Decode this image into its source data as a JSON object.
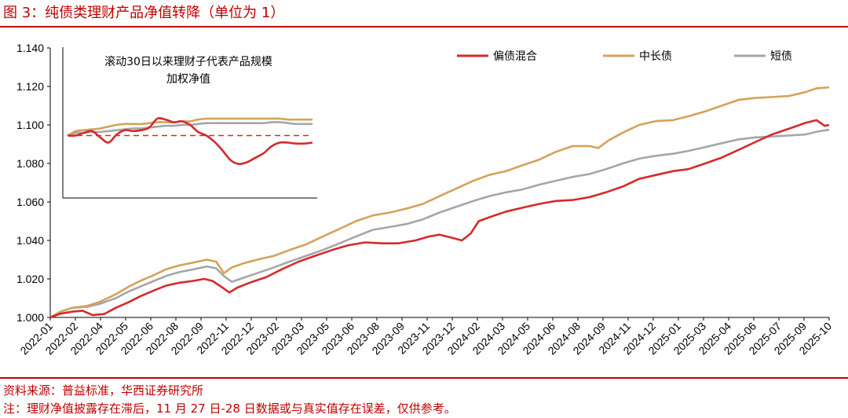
{
  "figure": {
    "title": "图 3：纯债类理财产品净值转降（单位为 1）",
    "source": "资料来源：普益标准，华西证券研究所",
    "note": "注：理财净值披露存在滞后，11 月 27 日-28 日数据或与真实值存在误差，仅供参考。"
  },
  "chart_data": [
    {
      "type": "line",
      "title": "",
      "xlabel": "",
      "ylabel": "",
      "ylim": [
        1.0,
        1.14
      ],
      "y_ticks": [
        "1.000",
        "1.020",
        "1.040",
        "1.060",
        "1.080",
        "1.100",
        "1.120",
        "1.140"
      ],
      "x_labels": [
        "2022-01",
        "2022-02",
        "2022-04",
        "2022-05",
        "2022-06",
        "2022-08",
        "2022-09",
        "2022-11",
        "2022-12",
        "2023-02",
        "2023-03",
        "2023-05",
        "2023-06",
        "2023-08",
        "2023-09",
        "2023-11",
        "2023-12",
        "2024-02",
        "2024-03",
        "2024-05",
        "2024-06",
        "2024-08",
        "2024-09",
        "2024-11",
        "2024-12",
        "2025-01",
        "2025-03",
        "2025-04",
        "2025-06",
        "2025-07",
        "2025-09",
        "2025-10"
      ],
      "legend_position": "top-right",
      "grid": false,
      "series": [
        {
          "name": "偏债混合",
          "color": "#d42a2a",
          "points": [
            [
              "2022-01-01",
              1.0
            ],
            [
              "2022-01-20",
              1.002
            ],
            [
              "2022-02-10",
              1.003
            ],
            [
              "2022-03-01",
              1.0035
            ],
            [
              "2022-03-20",
              1.0012
            ],
            [
              "2022-04-10",
              1.0018
            ],
            [
              "2022-05-01",
              1.005
            ],
            [
              "2022-05-25",
              1.008
            ],
            [
              "2022-06-15",
              1.011
            ],
            [
              "2022-07-10",
              1.014
            ],
            [
              "2022-08-01",
              1.0165
            ],
            [
              "2022-08-25",
              1.018
            ],
            [
              "2022-09-20",
              1.019
            ],
            [
              "2022-10-10",
              1.02
            ],
            [
              "2022-10-25",
              1.019
            ],
            [
              "2022-11-10",
              1.016
            ],
            [
              "2022-11-25",
              1.013
            ],
            [
              "2022-12-10",
              1.0155
            ],
            [
              "2023-01-01",
              1.018
            ],
            [
              "2023-02-01",
              1.021
            ],
            [
              "2023-03-01",
              1.025
            ],
            [
              "2023-04-01",
              1.029
            ],
            [
              "2023-05-01",
              1.032
            ],
            [
              "2023-06-01",
              1.035
            ],
            [
              "2023-07-01",
              1.0375
            ],
            [
              "2023-08-01",
              1.039
            ],
            [
              "2023-09-01",
              1.0385
            ],
            [
              "2023-10-01",
              1.0385
            ],
            [
              "2023-11-01",
              1.04
            ],
            [
              "2023-11-25",
              1.042
            ],
            [
              "2023-12-15",
              1.043
            ],
            [
              "2024-01-05",
              1.0415
            ],
            [
              "2024-01-25",
              1.04
            ],
            [
              "2024-02-10",
              1.0435
            ],
            [
              "2024-02-25",
              1.05
            ],
            [
              "2024-03-15",
              1.052
            ],
            [
              "2024-04-15",
              1.055
            ],
            [
              "2024-05-15",
              1.057
            ],
            [
              "2024-06-15",
              1.059
            ],
            [
              "2024-07-15",
              1.0605
            ],
            [
              "2024-08-15",
              1.061
            ],
            [
              "2024-09-15",
              1.0625
            ],
            [
              "2024-10-15",
              1.065
            ],
            [
              "2024-11-15",
              1.068
            ],
            [
              "2024-12-15",
              1.072
            ],
            [
              "2025-01-15",
              1.074
            ],
            [
              "2025-02-15",
              1.076
            ],
            [
              "2025-03-15",
              1.077
            ],
            [
              "2025-04-15",
              1.08
            ],
            [
              "2025-05-15",
              1.083
            ],
            [
              "2025-06-15",
              1.087
            ],
            [
              "2025-07-15",
              1.091
            ],
            [
              "2025-08-15",
              1.095
            ],
            [
              "2025-09-15",
              1.098
            ],
            [
              "2025-10-15",
              1.101
            ],
            [
              "2025-11-05",
              1.1025
            ],
            [
              "2025-11-20",
              1.0995
            ],
            [
              "2025-11-28",
              1.1
            ]
          ]
        },
        {
          "name": "中长债",
          "color": "#d4a25a",
          "points": [
            [
              "2022-01-01",
              1.0
            ],
            [
              "2022-01-20",
              1.003
            ],
            [
              "2022-02-10",
              1.005
            ],
            [
              "2022-03-10",
              1.006
            ],
            [
              "2022-04-01",
              1.008
            ],
            [
              "2022-05-01",
              1.012
            ],
            [
              "2022-05-25",
              1.016
            ],
            [
              "2022-06-15",
              1.019
            ],
            [
              "2022-07-10",
              1.022
            ],
            [
              "2022-08-01",
              1.025
            ],
            [
              "2022-08-25",
              1.027
            ],
            [
              "2022-09-20",
              1.0285
            ],
            [
              "2022-10-15",
              1.03
            ],
            [
              "2022-11-01",
              1.029
            ],
            [
              "2022-11-15",
              1.023
            ],
            [
              "2022-11-30",
              1.026
            ],
            [
              "2022-12-20",
              1.028
            ],
            [
              "2023-01-15",
              1.03
            ],
            [
              "2023-02-15",
              1.032
            ],
            [
              "2023-03-15",
              1.035
            ],
            [
              "2023-04-15",
              1.038
            ],
            [
              "2023-05-15",
              1.042
            ],
            [
              "2023-06-15",
              1.046
            ],
            [
              "2023-07-15",
              1.05
            ],
            [
              "2023-08-15",
              1.053
            ],
            [
              "2023-09-15",
              1.0545
            ],
            [
              "2023-10-15",
              1.0565
            ],
            [
              "2023-11-15",
              1.059
            ],
            [
              "2023-12-15",
              1.063
            ],
            [
              "2024-01-15",
              1.067
            ],
            [
              "2024-02-15",
              1.071
            ],
            [
              "2024-03-15",
              1.074
            ],
            [
              "2024-04-15",
              1.076
            ],
            [
              "2024-05-15",
              1.079
            ],
            [
              "2024-06-15",
              1.082
            ],
            [
              "2024-07-15",
              1.086
            ],
            [
              "2024-08-15",
              1.089
            ],
            [
              "2024-09-15",
              1.089
            ],
            [
              "2024-10-01",
              1.088
            ],
            [
              "2024-10-20",
              1.092
            ],
            [
              "2024-11-15",
              1.096
            ],
            [
              "2024-12-15",
              1.1
            ],
            [
              "2025-01-15",
              1.102
            ],
            [
              "2025-02-15",
              1.1025
            ],
            [
              "2025-03-15",
              1.1045
            ],
            [
              "2025-04-15",
              1.107
            ],
            [
              "2025-05-15",
              1.11
            ],
            [
              "2025-06-15",
              1.113
            ],
            [
              "2025-07-15",
              1.114
            ],
            [
              "2025-08-15",
              1.1145
            ],
            [
              "2025-09-15",
              1.115
            ],
            [
              "2025-10-15",
              1.117
            ],
            [
              "2025-11-05",
              1.119
            ],
            [
              "2025-11-28",
              1.1195
            ]
          ]
        },
        {
          "name": "短债",
          "color": "#a6a6a6",
          "points": [
            [
              "2022-01-01",
              1.0
            ],
            [
              "2022-01-20",
              1.003
            ],
            [
              "2022-02-10",
              1.005
            ],
            [
              "2022-03-10",
              1.0055
            ],
            [
              "2022-04-01",
              1.007
            ],
            [
              "2022-05-01",
              1.01
            ],
            [
              "2022-05-25",
              1.0135
            ],
            [
              "2022-06-15",
              1.016
            ],
            [
              "2022-07-10",
              1.019
            ],
            [
              "2022-08-01",
              1.0215
            ],
            [
              "2022-08-25",
              1.0235
            ],
            [
              "2022-09-20",
              1.025
            ],
            [
              "2022-10-15",
              1.0265
            ],
            [
              "2022-11-01",
              1.0255
            ],
            [
              "2022-11-15",
              1.0215
            ],
            [
              "2022-11-30",
              1.0185
            ],
            [
              "2022-12-15",
              1.02
            ],
            [
              "2023-01-15",
              1.023
            ],
            [
              "2023-02-15",
              1.026
            ],
            [
              "2023-03-15",
              1.029
            ],
            [
              "2023-04-15",
              1.032
            ],
            [
              "2023-05-15",
              1.035
            ],
            [
              "2023-06-15",
              1.0385
            ],
            [
              "2023-07-15",
              1.042
            ],
            [
              "2023-08-15",
              1.0455
            ],
            [
              "2023-09-15",
              1.047
            ],
            [
              "2023-10-15",
              1.0485
            ],
            [
              "2023-11-15",
              1.051
            ],
            [
              "2023-12-15",
              1.0545
            ],
            [
              "2024-01-15",
              1.0575
            ],
            [
              "2024-02-15",
              1.0605
            ],
            [
              "2024-03-15",
              1.063
            ],
            [
              "2024-04-15",
              1.065
            ],
            [
              "2024-05-15",
              1.0665
            ],
            [
              "2024-06-15",
              1.069
            ],
            [
              "2024-07-15",
              1.071
            ],
            [
              "2024-08-15",
              1.073
            ],
            [
              "2024-09-15",
              1.0745
            ],
            [
              "2024-10-15",
              1.077
            ],
            [
              "2024-11-15",
              1.08
            ],
            [
              "2024-12-15",
              1.0825
            ],
            [
              "2025-01-15",
              1.084
            ],
            [
              "2025-02-15",
              1.085
            ],
            [
              "2025-03-15",
              1.0865
            ],
            [
              "2025-04-15",
              1.0885
            ],
            [
              "2025-05-15",
              1.0905
            ],
            [
              "2025-06-15",
              1.0925
            ],
            [
              "2025-07-15",
              1.0935
            ],
            [
              "2025-08-15",
              1.094
            ],
            [
              "2025-09-15",
              1.0945
            ],
            [
              "2025-10-15",
              1.095
            ],
            [
              "2025-11-05",
              1.0965
            ],
            [
              "2025-11-28",
              1.0975
            ]
          ]
        }
      ]
    },
    {
      "type": "line",
      "title": "滚动30日以来理财子代表产品规模加权净值",
      "title_lines": [
        "滚动30日以来理财子代表产品规模",
        "加权净值"
      ],
      "xlabel": "",
      "ylabel": "",
      "ylim": [
        0,
        100
      ],
      "x": [
        0,
        2,
        4,
        6,
        8,
        10,
        12,
        14,
        16,
        18,
        20,
        22,
        24,
        26,
        28,
        30,
        32,
        34,
        36,
        38,
        40,
        42,
        44,
        46,
        48,
        50,
        52,
        54,
        56,
        58,
        60
      ],
      "reference_line": {
        "y": 50,
        "color": "#d42a2a",
        "style": "dashed"
      },
      "series": [
        {
          "name": "偏债混合",
          "color": "#d42a2a",
          "values": [
            50,
            50,
            53,
            55,
            48,
            42,
            51,
            56,
            55,
            56,
            59,
            69,
            68,
            65,
            66,
            62,
            54,
            50,
            43,
            33,
            22,
            18,
            20,
            25,
            30,
            38,
            42,
            42,
            41,
            41,
            42
          ]
        },
        {
          "name": "中长债",
          "color": "#d4a25a",
          "values": [
            50,
            55,
            56,
            57,
            58,
            60,
            62,
            63,
            63,
            63,
            64,
            65,
            65,
            65,
            66,
            66,
            68,
            69,
            69,
            69,
            69,
            69,
            69,
            69,
            69,
            69,
            69,
            68,
            68,
            68,
            68
          ]
        },
        {
          "name": "短债",
          "color": "#a6a6a6",
          "values": [
            50,
            53,
            53,
            54,
            54,
            55,
            56,
            57,
            58,
            58,
            59,
            60,
            61,
            61,
            62,
            62,
            63,
            64,
            64,
            64,
            64,
            64,
            64,
            64,
            64,
            65,
            65,
            64,
            63,
            63,
            63
          ]
        }
      ]
    }
  ]
}
